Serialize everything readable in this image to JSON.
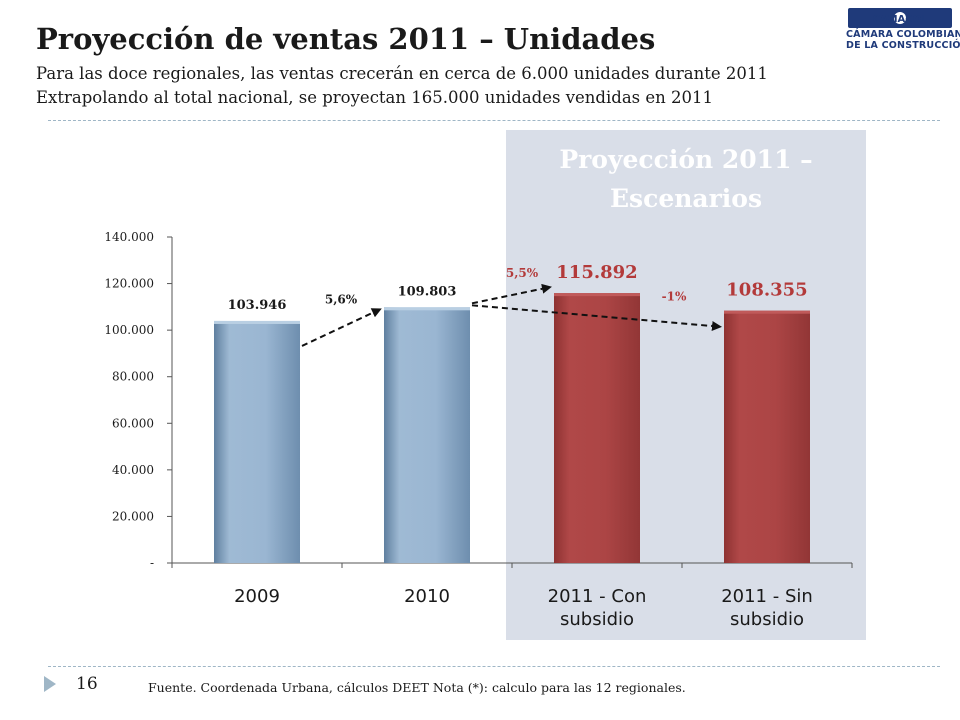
{
  "slide": {
    "title": "Proyección de ventas 2011 – Unidades",
    "subtitle_line1": "Para las doce regionales, las ventas crecerán en cerca de 6.000 unidades durante 2011",
    "subtitle_line2": "Extrapolando al total nacional, se proyectan 165.000 unidades vendidas en 2011",
    "page_number": "16",
    "footnote": "Fuente. Coordenada Urbana, cálculos DEET Nota (*): calculo para las 12 regionales."
  },
  "logo": {
    "brand": "CAMACOL",
    "line1": "CÁMARA COLOMBIANA",
    "line2": "DE LA CONSTRUCCIÓN",
    "color": "#1f3a7a"
  },
  "colors": {
    "bar_historic": "#8eaccb",
    "bar_projection": "#a84444",
    "panel": "#d9dee8",
    "panel_title": "#ffffff",
    "projection_label": "#b33a3a",
    "rule": "#9fb6c6"
  },
  "chart_data": {
    "type": "bar",
    "categories": [
      "2009",
      "2010",
      "2011 - Con subsidio",
      "2011 - Sin subsidio"
    ],
    "values": [
      103946,
      109803,
      115892,
      108355
    ],
    "value_labels": [
      "103.946",
      "109.803",
      "115.892",
      "108.355"
    ],
    "ylim": [
      0,
      140000
    ],
    "yticks": [
      0,
      20000,
      40000,
      60000,
      80000,
      100000,
      120000,
      140000
    ],
    "ytick_labels": [
      "-",
      "20.000",
      "40.000",
      "60.000",
      "80.000",
      "100.000",
      "120.000",
      "140.000"
    ],
    "panel_title_line1": "Proyección 2011 –",
    "panel_title_line2": "Escenarios",
    "growth_annotations": [
      {
        "from": "2009",
        "to": "2010",
        "label": "5,6%"
      },
      {
        "from": "2010",
        "to": "2011 - Con subsidio",
        "label": "5,5%"
      },
      {
        "from": "2010",
        "to": "2011 - Sin subsidio",
        "label": "-1%"
      }
    ],
    "grid": false,
    "legend": "none"
  }
}
